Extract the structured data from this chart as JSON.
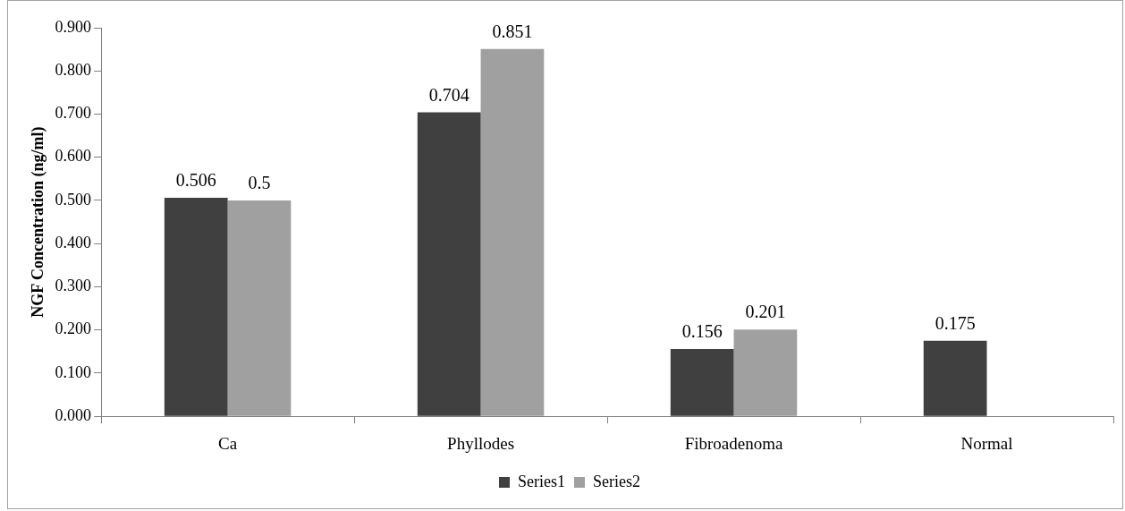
{
  "chart_data": {
    "type": "bar",
    "ylabel": "NGF Concentration (ng/ml)",
    "categories": [
      "Ca",
      "Phyllodes",
      "Fibroadenoma",
      "Normal"
    ],
    "series": [
      {
        "name": "Series1",
        "color": "#404040",
        "values": [
          0.506,
          0.704,
          0.156,
          0.175
        ]
      },
      {
        "name": "Series2",
        "color": "#a0a0a0",
        "values": [
          0.5,
          0.851,
          0.201,
          null
        ]
      }
    ],
    "ylim": [
      0,
      0.9
    ],
    "yticks": [
      {
        "value": 0,
        "label": "0.000"
      },
      {
        "value": 0.1,
        "label": "0.100"
      },
      {
        "value": 0.2,
        "label": "0.200"
      },
      {
        "value": 0.3,
        "label": "0.300"
      },
      {
        "value": 0.4,
        "label": "0.400"
      },
      {
        "value": 0.5,
        "label": "0.500"
      },
      {
        "value": 0.6,
        "label": "0.600"
      },
      {
        "value": 0.7,
        "label": "0.700"
      },
      {
        "value": 0.8,
        "label": "0.800"
      },
      {
        "value": 0.9,
        "label": "0.900"
      }
    ],
    "grid": false,
    "legend": "bottom",
    "data_labels": true
  }
}
